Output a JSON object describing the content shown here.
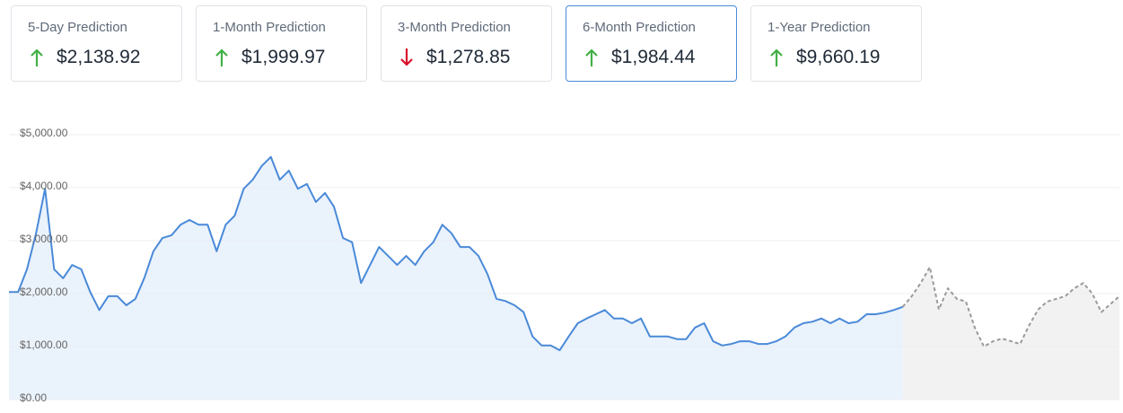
{
  "cards": [
    {
      "label": "5-Day Prediction",
      "value": "$2,138.92",
      "direction": "up"
    },
    {
      "label": "1-Month Prediction",
      "value": "$1,999.97",
      "direction": "up"
    },
    {
      "label": "3-Month Prediction",
      "value": "$1,278.85",
      "direction": "down"
    },
    {
      "label": "6-Month Prediction",
      "value": "$1,984.44",
      "direction": "up"
    },
    {
      "label": "1-Year Prediction",
      "value": "$9,660.19",
      "direction": "up"
    }
  ],
  "selected_card": 3,
  "direction_colors": {
    "up": "#43b047",
    "down": "#d9102a"
  },
  "chart_data": {
    "type": "line",
    "ylim": [
      0,
      5000
    ],
    "yticks": [
      {
        "value": 0,
        "label": "$0.00"
      },
      {
        "value": 1000,
        "label": "$1,000.00"
      },
      {
        "value": 2000,
        "label": "$2,000.00"
      },
      {
        "value": 3000,
        "label": "$3,000.00"
      },
      {
        "value": 4000,
        "label": "$4,000.00"
      },
      {
        "value": 5000,
        "label": "$5,000.00"
      }
    ],
    "grid": true,
    "series": [
      {
        "color": "#4a8ad8",
        "fill": "#eaf2fc",
        "dashed": false,
        "values": [
          2030,
          2030,
          2460,
          3140,
          3980,
          2460,
          2290,
          2540,
          2460,
          2030,
          1690,
          1950,
          1950,
          1780,
          1900,
          2300,
          2800,
          3050,
          3100,
          3300,
          3390,
          3300,
          3300,
          2800,
          3300,
          3470,
          3980,
          4150,
          4410,
          4580,
          4150,
          4320,
          3980,
          4070,
          3730,
          3900,
          3640,
          3050,
          2970,
          2200,
          2540,
          2880,
          2710,
          2540,
          2710,
          2540,
          2800,
          2970,
          3300,
          3140,
          2880,
          2880,
          2710,
          2370,
          1900,
          1860,
          1780,
          1650,
          1190,
          1020,
          1020,
          930,
          1190,
          1440,
          1530,
          1610,
          1690,
          1530,
          1530,
          1440,
          1530,
          1190,
          1190,
          1190,
          1140,
          1140,
          1360,
          1440,
          1100,
          1020,
          1050,
          1100,
          1100,
          1050,
          1050,
          1100,
          1190,
          1360,
          1440,
          1470,
          1530,
          1440,
          1530,
          1440,
          1470,
          1610,
          1610,
          1640,
          1690,
          1750,
          null,
          null,
          null,
          null,
          null,
          null,
          null,
          null,
          null,
          null,
          null,
          null,
          null,
          null,
          null,
          null,
          null,
          null,
          null,
          null,
          null,
          null,
          null,
          null
        ]
      },
      {
        "color": "#9a9a9a",
        "fill": "#f2f2f2",
        "dashed": true,
        "values": [
          null,
          null,
          null,
          null,
          null,
          null,
          null,
          null,
          null,
          null,
          null,
          null,
          null,
          null,
          null,
          null,
          null,
          null,
          null,
          null,
          null,
          null,
          null,
          null,
          null,
          null,
          null,
          null,
          null,
          null,
          null,
          null,
          null,
          null,
          null,
          null,
          null,
          null,
          null,
          null,
          null,
          null,
          null,
          null,
          null,
          null,
          null,
          null,
          null,
          null,
          null,
          null,
          null,
          null,
          null,
          null,
          null,
          null,
          null,
          null,
          null,
          null,
          null,
          null,
          null,
          null,
          null,
          null,
          null,
          null,
          null,
          null,
          null,
          null,
          null,
          null,
          null,
          null,
          null,
          null,
          null,
          null,
          null,
          null,
          null,
          null,
          null,
          null,
          null,
          null,
          null,
          null,
          null,
          null,
          null,
          null,
          null,
          null,
          null,
          1750,
          1950,
          2200,
          2500,
          1700,
          2100,
          1900,
          1850,
          1350,
          1000,
          1100,
          1150,
          1100,
          1050,
          1400,
          1700,
          1850,
          1900,
          1950,
          2100,
          2200,
          2000,
          1650,
          1800,
          1950
        ]
      }
    ]
  }
}
